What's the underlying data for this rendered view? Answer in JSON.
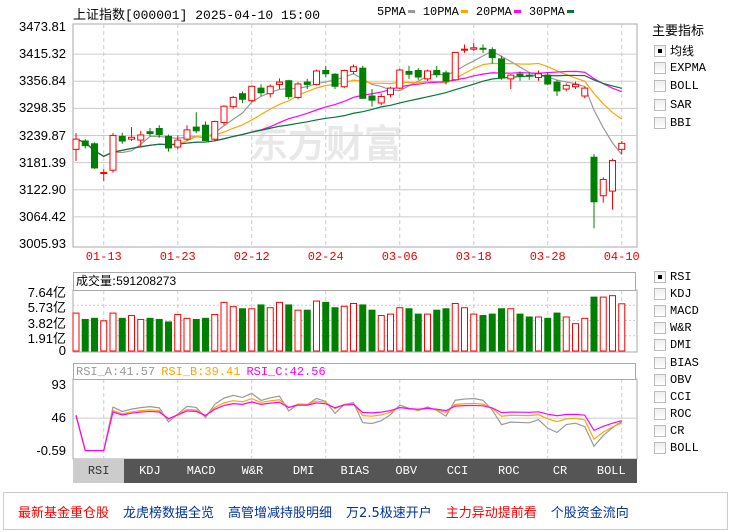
{
  "header": {
    "title": "上证指数[000001] 2025-04-10 15:00",
    "ma_legend": [
      {
        "label": "5PMA",
        "color": "#999999"
      },
      {
        "label": "10PMA",
        "color": "#ffa500"
      },
      {
        "label": "20PMA",
        "color": "#ff00ff"
      },
      {
        "label": "30PMA",
        "color": "#007a33"
      }
    ]
  },
  "watermark": "东方财富",
  "colors": {
    "up": "#ff0000",
    "down": "#008000",
    "grid": "#cccccc"
  },
  "chart_data": [
    {
      "type": "candlestick",
      "y_ticks": [
        "3473.81",
        "3415.32",
        "3356.84",
        "3298.35",
        "3239.87",
        "3181.39",
        "3122.90",
        "3064.42",
        "3005.93"
      ],
      "ylim": [
        3005.93,
        3473.81
      ],
      "x_tick_labels": [
        "01-13",
        "01-23",
        "02-12",
        "02-24",
        "03-06",
        "03-18",
        "03-28",
        "04-10"
      ],
      "dates": [
        "01-08",
        "01-09",
        "01-10",
        "01-13",
        "01-14",
        "01-15",
        "01-16",
        "01-17",
        "01-20",
        "01-21",
        "01-22",
        "01-23",
        "01-24",
        "01-27",
        "02-05",
        "02-06",
        "02-07",
        "02-10",
        "02-11",
        "02-12",
        "02-13",
        "02-14",
        "02-17",
        "02-18",
        "02-19",
        "02-20",
        "02-21",
        "02-24",
        "02-25",
        "02-26",
        "02-27",
        "02-28",
        "03-03",
        "03-04",
        "03-05",
        "03-06",
        "03-07",
        "03-10",
        "03-11",
        "03-12",
        "03-13",
        "03-14",
        "03-17",
        "03-18",
        "03-19",
        "03-20",
        "03-21",
        "03-24",
        "03-25",
        "03-26",
        "03-27",
        "03-28",
        "03-31",
        "04-01",
        "04-02",
        "04-03",
        "04-07",
        "04-08",
        "04-09",
        "04-10"
      ],
      "ohlc": [
        [
          3210,
          3245,
          3185,
          3232
        ],
        [
          3228,
          3232,
          3212,
          3218
        ],
        [
          3222,
          3225,
          3168,
          3170
        ],
        [
          3158,
          3168,
          3142,
          3160
        ],
        [
          3165,
          3245,
          3160,
          3240
        ],
        [
          3238,
          3246,
          3222,
          3228
        ],
        [
          3232,
          3258,
          3228,
          3236
        ],
        [
          3230,
          3250,
          3215,
          3241
        ],
        [
          3248,
          3256,
          3238,
          3244
        ],
        [
          3255,
          3262,
          3235,
          3242
        ],
        [
          3238,
          3242,
          3205,
          3213
        ],
        [
          3215,
          3240,
          3210,
          3230
        ],
        [
          3232,
          3262,
          3228,
          3252
        ],
        [
          3258,
          3290,
          3245,
          3250
        ],
        [
          3262,
          3270,
          3229,
          3229
        ],
        [
          3232,
          3272,
          3228,
          3270
        ],
        [
          3268,
          3305,
          3262,
          3303
        ],
        [
          3302,
          3325,
          3298,
          3322
        ],
        [
          3330,
          3335,
          3310,
          3318
        ],
        [
          3315,
          3348,
          3312,
          3346
        ],
        [
          3342,
          3350,
          3325,
          3332
        ],
        [
          3330,
          3350,
          3322,
          3346
        ],
        [
          3350,
          3363,
          3340,
          3355
        ],
        [
          3358,
          3360,
          3318,
          3324
        ],
        [
          3322,
          3355,
          3318,
          3351
        ],
        [
          3355,
          3362,
          3340,
          3350
        ],
        [
          3350,
          3382,
          3348,
          3379
        ],
        [
          3380,
          3390,
          3365,
          3373
        ],
        [
          3372,
          3374,
          3340,
          3346
        ],
        [
          3345,
          3382,
          3342,
          3380
        ],
        [
          3378,
          3393,
          3372,
          3388
        ],
        [
          3385,
          3390,
          3320,
          3320
        ],
        [
          3325,
          3340,
          3302,
          3316
        ],
        [
          3310,
          3330,
          3305,
          3324
        ],
        [
          3328,
          3345,
          3322,
          3342
        ],
        [
          3342,
          3384,
          3340,
          3381
        ],
        [
          3378,
          3390,
          3362,
          3372
        ],
        [
          3380,
          3385,
          3360,
          3366
        ],
        [
          3362,
          3382,
          3358,
          3379
        ],
        [
          3380,
          3390,
          3365,
          3371
        ],
        [
          3375,
          3380,
          3350,
          3358
        ],
        [
          3360,
          3420,
          3358,
          3419
        ],
        [
          3425,
          3436,
          3418,
          3426
        ],
        [
          3426,
          3440,
          3422,
          3429
        ],
        [
          3428,
          3436,
          3418,
          3426
        ],
        [
          3425,
          3430,
          3395,
          3408
        ],
        [
          3405,
          3412,
          3360,
          3364
        ],
        [
          3362,
          3372,
          3340,
          3370
        ],
        [
          3372,
          3378,
          3358,
          3369
        ],
        [
          3370,
          3376,
          3360,
          3368
        ],
        [
          3365,
          3380,
          3358,
          3373
        ],
        [
          3370,
          3376,
          3348,
          3351
        ],
        [
          3355,
          3360,
          3325,
          3336
        ],
        [
          3340,
          3352,
          3335,
          3348
        ],
        [
          3345,
          3356,
          3340,
          3350
        ],
        [
          3325,
          3345,
          3320,
          3342
        ],
        [
          3193,
          3200,
          3040,
          3097
        ],
        [
          3110,
          3150,
          3095,
          3145
        ],
        [
          3120,
          3190,
          3080,
          3186
        ],
        [
          3210,
          3228,
          3200,
          3223
        ]
      ],
      "ma_periods": [
        5,
        10,
        20,
        30
      ]
    },
    {
      "type": "bar",
      "label": "成交量",
      "value_text": "591208273",
      "unit": "亿",
      "y_ticks": [
        "7.64亿",
        "5.73亿",
        "3.82亿",
        "1.91亿",
        "0"
      ],
      "ylim": [
        0,
        7.64
      ],
      "values": [
        4.75,
        3.95,
        4.09,
        3.78,
        4.75,
        4.09,
        4.44,
        3.95,
        4.09,
        3.95,
        3.64,
        4.58,
        4.09,
        3.95,
        4.09,
        4.58,
        6.09,
        5.55,
        5.29,
        5.29,
        5.77,
        5.42,
        6.09,
        5.77,
        5.11,
        5.11,
        6.26,
        6.09,
        5.42,
        5.6,
        5.95,
        5.77,
        5.11,
        4.44,
        4.62,
        5.42,
        5.29,
        4.62,
        4.62,
        5.11,
        5.29,
        5.95,
        5.42,
        4.62,
        4.44,
        4.62,
        5.29,
        5.29,
        4.62,
        4.26,
        4.26,
        4.09,
        4.75,
        4.26,
        3.42,
        4.09,
        6.75,
        6.75,
        6.93,
        5.91
      ]
    },
    {
      "type": "line",
      "label_values": [
        {
          "label": "RSI_A:41.57",
          "color": "#999999"
        },
        {
          "label": "RSI_B:39.41",
          "color": "#ffa500"
        },
        {
          "label": "RSI_C:42.56",
          "color": "#ff00ff"
        }
      ],
      "periods": [
        6,
        12,
        24
      ],
      "y_ticks": [
        "93",
        "46",
        "-0.59"
      ],
      "ylim": [
        -0.59,
        93
      ]
    }
  ],
  "indicator_tabs": [
    "RSI",
    "KDJ",
    "MACD",
    "W&R",
    "DMI",
    "BIAS",
    "OBV",
    "CCI",
    "ROC",
    "CR",
    "BOLL"
  ],
  "selected_tab": "RSI",
  "right_panel": {
    "title": "主要指标",
    "main_indicators": [
      {
        "label": "均线",
        "checked": true
      },
      {
        "label": "EXPMA",
        "checked": false
      },
      {
        "label": "BOLL",
        "checked": false
      },
      {
        "label": "SAR",
        "checked": false
      },
      {
        "label": "BBI",
        "checked": false
      }
    ],
    "sub_indicators": [
      {
        "label": "RSI",
        "checked": true
      },
      {
        "label": "KDJ",
        "checked": false
      },
      {
        "label": "MACD",
        "checked": false
      },
      {
        "label": "W&R",
        "checked": false
      },
      {
        "label": "DMI",
        "checked": false
      },
      {
        "label": "BIAS",
        "checked": false
      },
      {
        "label": "OBV",
        "checked": false
      },
      {
        "label": "CCI",
        "checked": false
      },
      {
        "label": "ROC",
        "checked": false
      },
      {
        "label": "CR",
        "checked": false
      },
      {
        "label": "BOLL",
        "checked": false
      }
    ]
  },
  "links": [
    {
      "label": "最新基金重仓股",
      "color": "#ff0000"
    },
    {
      "label": "龙虎榜数据全览",
      "color": "#003399"
    },
    {
      "label": "高管增减持股明细",
      "color": "#003399"
    },
    {
      "label": "万2.5极速开户",
      "color": "#003399"
    },
    {
      "label": "主力异动提前看",
      "color": "#ff0000"
    },
    {
      "label": "个股资金流向",
      "color": "#003399"
    }
  ]
}
